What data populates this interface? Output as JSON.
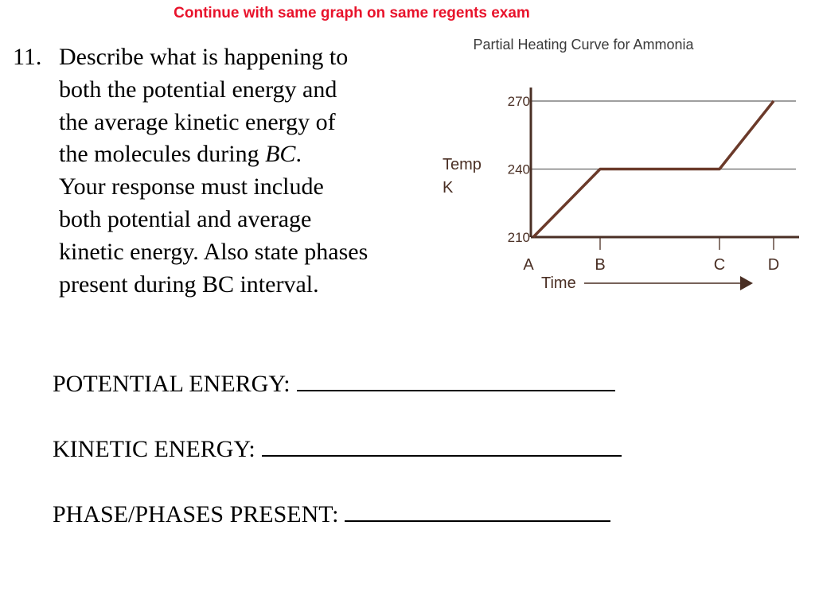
{
  "header": "Continue with same graph on same regents exam",
  "question": {
    "number": "11.",
    "lines": [
      "Describe what is happening to",
      "both the potential energy and",
      "the average kinetic energy of",
      "the molecules during ",
      "Your response must include",
      "both potential and average",
      "kinetic energy.  Also state phases",
      "present during BC interval."
    ],
    "italic_term": "BC",
    "italic_suffix": "."
  },
  "answers": [
    {
      "label": "POTENTIAL ENERGY:"
    },
    {
      "label": "KINETIC ENERGY:"
    },
    {
      "label": "PHASE/PHASES PRESENT:"
    }
  ],
  "chart_data": {
    "type": "line",
    "title": "Partial Heating Curve for Ammonia",
    "ylabel_lines": [
      "Temp",
      "K"
    ],
    "xlabel": "Time",
    "y_ticks": [
      "210",
      "240",
      "270"
    ],
    "ylim": [
      210,
      270
    ],
    "x_categories": [
      "A",
      "B",
      "C",
      "D"
    ],
    "series": [
      {
        "x": [
          "A",
          "B",
          "C",
          "D"
        ],
        "values": [
          210,
          240,
          240,
          270
        ]
      }
    ],
    "grid": true,
    "colors": {
      "line": "#6b3a2a",
      "axis": "#4a2f24",
      "grid": "#666666"
    }
  }
}
